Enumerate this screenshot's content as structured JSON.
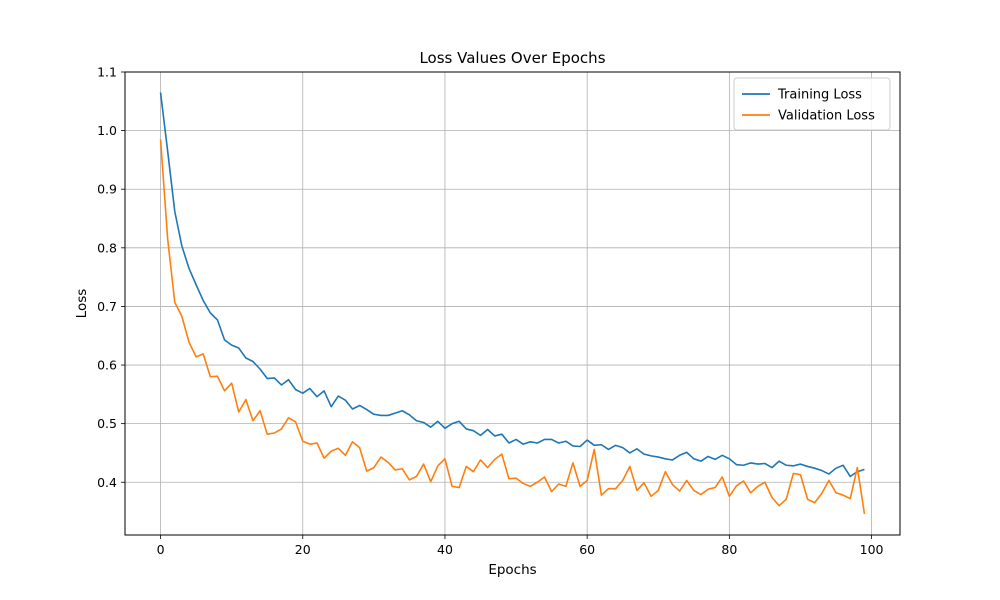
{
  "chart_data": {
    "type": "line",
    "title": "Loss Values Over Epochs",
    "xlabel": "Epochs",
    "ylabel": "Loss",
    "xlim": [
      -5,
      104
    ],
    "ylim": [
      0.31,
      1.1
    ],
    "xticks": [
      0,
      20,
      40,
      60,
      80,
      100
    ],
    "yticks": [
      0.4,
      0.5,
      0.6,
      0.7,
      0.8,
      0.9,
      1.0,
      1.1
    ],
    "ytick_labels": [
      "0.4",
      "0.5",
      "0.6",
      "0.7",
      "0.8",
      "0.9",
      "1.0",
      "1.1"
    ],
    "grid": true,
    "legend_position": "top-right",
    "series": [
      {
        "name": "Training Loss",
        "color": "#1f77b4",
        "values": [
          1.065,
          0.965,
          0.862,
          0.803,
          0.765,
          0.737,
          0.71,
          0.689,
          0.677,
          0.643,
          0.634,
          0.629,
          0.612,
          0.606,
          0.593,
          0.577,
          0.578,
          0.566,
          0.575,
          0.558,
          0.552,
          0.56,
          0.546,
          0.556,
          0.529,
          0.547,
          0.54,
          0.525,
          0.531,
          0.524,
          0.516,
          0.514,
          0.514,
          0.518,
          0.522,
          0.515,
          0.505,
          0.502,
          0.494,
          0.504,
          0.492,
          0.5,
          0.504,
          0.491,
          0.488,
          0.48,
          0.49,
          0.479,
          0.482,
          0.467,
          0.473,
          0.465,
          0.469,
          0.467,
          0.473,
          0.473,
          0.467,
          0.47,
          0.462,
          0.461,
          0.472,
          0.463,
          0.464,
          0.456,
          0.463,
          0.459,
          0.45,
          0.457,
          0.448,
          0.445,
          0.443,
          0.44,
          0.438,
          0.446,
          0.451,
          0.44,
          0.436,
          0.444,
          0.439,
          0.446,
          0.44,
          0.43,
          0.429,
          0.433,
          0.431,
          0.432,
          0.425,
          0.436,
          0.429,
          0.428,
          0.431,
          0.427,
          0.424,
          0.42,
          0.414,
          0.424,
          0.429,
          0.41,
          0.418,
          0.422
        ]
      },
      {
        "name": "Validation Loss",
        "color": "#ff7f0e",
        "values": [
          0.985,
          0.815,
          0.707,
          0.683,
          0.639,
          0.614,
          0.619,
          0.58,
          0.581,
          0.556,
          0.569,
          0.52,
          0.541,
          0.505,
          0.522,
          0.482,
          0.484,
          0.491,
          0.51,
          0.503,
          0.47,
          0.465,
          0.467,
          0.441,
          0.453,
          0.458,
          0.446,
          0.469,
          0.459,
          0.419,
          0.425,
          0.443,
          0.434,
          0.421,
          0.423,
          0.404,
          0.41,
          0.431,
          0.401,
          0.428,
          0.44,
          0.393,
          0.391,
          0.427,
          0.418,
          0.438,
          0.425,
          0.439,
          0.448,
          0.406,
          0.407,
          0.398,
          0.393,
          0.4,
          0.409,
          0.384,
          0.397,
          0.393,
          0.433,
          0.393,
          0.403,
          0.456,
          0.378,
          0.389,
          0.389,
          0.403,
          0.427,
          0.386,
          0.399,
          0.376,
          0.386,
          0.418,
          0.396,
          0.385,
          0.403,
          0.386,
          0.379,
          0.388,
          0.391,
          0.409,
          0.376,
          0.394,
          0.402,
          0.382,
          0.393,
          0.4,
          0.374,
          0.36,
          0.371,
          0.415,
          0.413,
          0.371,
          0.365,
          0.381,
          0.403,
          0.382,
          0.378,
          0.372,
          0.425,
          0.346
        ]
      }
    ]
  }
}
